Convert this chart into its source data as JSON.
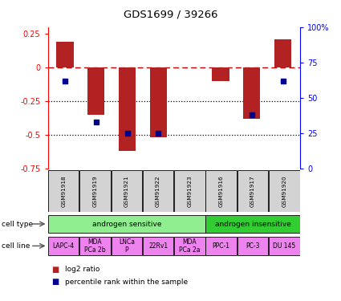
{
  "title": "GDS1699 / 39266",
  "samples": [
    "GSM91918",
    "GSM91919",
    "GSM91921",
    "GSM91922",
    "GSM91923",
    "GSM91916",
    "GSM91917",
    "GSM91920"
  ],
  "log2_ratio": [
    0.19,
    -0.35,
    -0.62,
    -0.52,
    0.0,
    -0.1,
    -0.38,
    0.21
  ],
  "percentile_rank": [
    62,
    33,
    25,
    25,
    null,
    null,
    38,
    62
  ],
  "ylim_left": [
    -0.75,
    0.3
  ],
  "ylim_right": [
    0,
    100
  ],
  "yticks_left": [
    -0.75,
    -0.5,
    -0.25,
    0,
    0.25
  ],
  "yticks_right": [
    0,
    25,
    50,
    75,
    100
  ],
  "hlines_dotted": [
    -0.25,
    -0.5
  ],
  "bar_color": "#b22222",
  "dot_color": "#00008b",
  "dashed_line_color": "#cc0000",
  "cell_types": [
    {
      "label": "androgen sensitive",
      "span": [
        0,
        5
      ],
      "color": "#90ee90"
    },
    {
      "label": "androgen insensitive",
      "span": [
        5,
        8
      ],
      "color": "#32cd32"
    }
  ],
  "cell_lines": [
    {
      "label": "LAPC-4",
      "span": [
        0,
        1
      ]
    },
    {
      "label": "MDA\nPCa 2b",
      "span": [
        1,
        2
      ]
    },
    {
      "label": "LNCa\nP",
      "span": [
        2,
        3
      ]
    },
    {
      "label": "22Rv1",
      "span": [
        3,
        4
      ]
    },
    {
      "label": "MDA\nPCa 2a",
      "span": [
        4,
        5
      ]
    },
    {
      "label": "PPC-1",
      "span": [
        5,
        6
      ]
    },
    {
      "label": "PC-3",
      "span": [
        6,
        7
      ]
    },
    {
      "label": "DU 145",
      "span": [
        7,
        8
      ]
    }
  ],
  "cell_line_color": "#ee82ee",
  "gsm_box_color": "#d3d3d3",
  "legend_items": [
    {
      "label": "log2 ratio",
      "color": "#b22222"
    },
    {
      "label": "percentile rank within the sample",
      "color": "#00008b"
    }
  ],
  "figsize": [
    4.25,
    3.75
  ],
  "dpi": 100
}
